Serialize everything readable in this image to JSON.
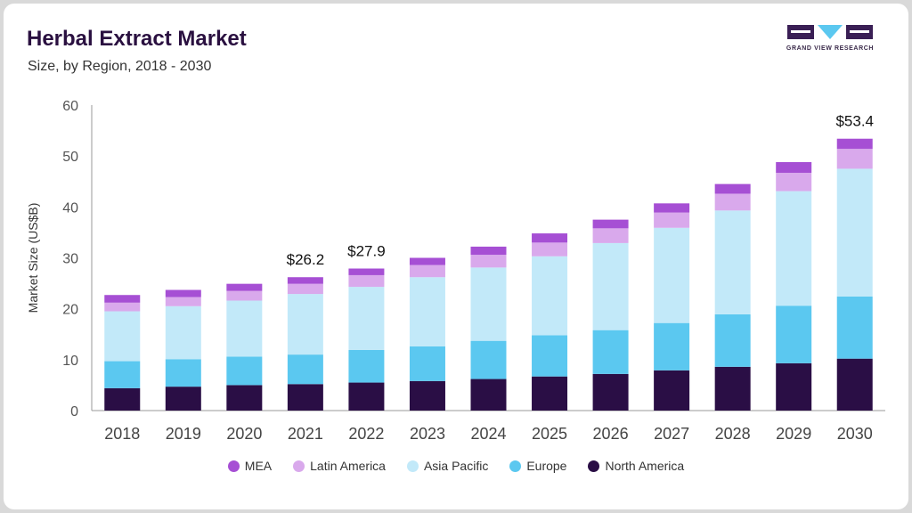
{
  "header": {
    "title": "Herbal Extract Market",
    "subtitle": "Size, by Region, 2018 - 2030"
  },
  "logo": {
    "text": "GRAND VIEW RESEARCH"
  },
  "chart_data": {
    "type": "bar",
    "stacked": true,
    "title": "Herbal Extract Market",
    "subtitle": "Size, by Region, 2018 - 2030",
    "xlabel": "",
    "ylabel": "Market Size (US$B)",
    "ylim": [
      0,
      60
    ],
    "yticks": [
      0,
      10,
      20,
      30,
      40,
      50,
      60
    ],
    "categories": [
      "2018",
      "2019",
      "2020",
      "2021",
      "2022",
      "2023",
      "2024",
      "2025",
      "2026",
      "2027",
      "2028",
      "2029",
      "2030"
    ],
    "series": [
      {
        "name": "North America",
        "color": "#2a0e45",
        "values": [
          4.4,
          4.7,
          5.0,
          5.2,
          5.5,
          5.8,
          6.2,
          6.7,
          7.2,
          7.9,
          8.6,
          9.3,
          10.2
        ]
      },
      {
        "name": "Europe",
        "color": "#5bc8f0",
        "values": [
          5.3,
          5.4,
          5.6,
          5.8,
          6.4,
          6.8,
          7.5,
          8.1,
          8.6,
          9.3,
          10.3,
          11.3,
          12.2
        ]
      },
      {
        "name": "Asia Pacific",
        "color": "#c2e9f9",
        "values": [
          9.8,
          10.4,
          11.0,
          11.9,
          12.4,
          13.6,
          14.4,
          15.5,
          17.1,
          18.7,
          20.4,
          22.5,
          25.1
        ]
      },
      {
        "name": "Latin America",
        "color": "#d9a9ec",
        "values": [
          1.7,
          1.8,
          1.9,
          2.0,
          2.3,
          2.4,
          2.5,
          2.7,
          2.9,
          3.0,
          3.3,
          3.6,
          3.9
        ]
      },
      {
        "name": "MEA",
        "color": "#a64fd4",
        "values": [
          1.5,
          1.4,
          1.4,
          1.3,
          1.3,
          1.4,
          1.6,
          1.8,
          1.7,
          1.8,
          1.9,
          2.1,
          2.0
        ]
      }
    ],
    "annotations": [
      {
        "category": "2021",
        "text": "$26.2",
        "value": 26.2
      },
      {
        "category": "2022",
        "text": "$27.9",
        "value": 27.9
      },
      {
        "category": "2030",
        "text": "$53.4",
        "value": 53.4
      }
    ],
    "legend_order": [
      "MEA",
      "Latin America",
      "Asia Pacific",
      "Europe",
      "North America"
    ],
    "legend_position": "bottom",
    "grid": false
  }
}
